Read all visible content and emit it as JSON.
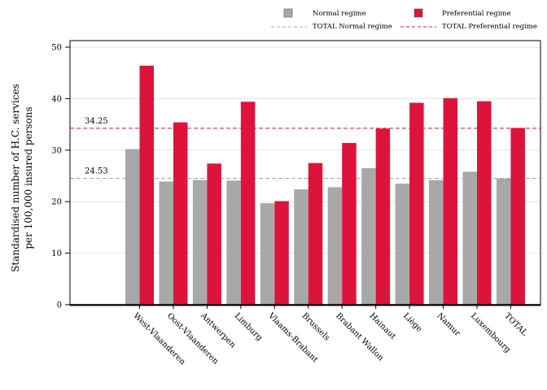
{
  "chart_data": {
    "type": "bar",
    "ylabel": [
      "Standardised number of H.C. services",
      "per 100,000 insured persons"
    ],
    "ylim": [
      0,
      50
    ],
    "yticks": [
      0,
      10,
      20,
      30,
      40,
      50
    ],
    "grid": true,
    "legend_position": "top",
    "categories": [
      "West-Vlaanderen",
      "Oost-Vlaanderen",
      "Antwerpen",
      "Limburg",
      "Vlaams-Brabant",
      "Brussels",
      "Brabant Wallon",
      "Hainaut",
      "Liège",
      "Namur",
      "Luxembourg",
      "TOTAL"
    ],
    "series": [
      {
        "name": "Normal regime",
        "color": "#a8a8a8",
        "values": [
          30.2,
          23.9,
          24.2,
          24.1,
          19.7,
          22.4,
          22.8,
          26.5,
          23.5,
          24.2,
          25.8,
          24.5
        ]
      },
      {
        "name": "Preferential regime",
        "color": "#dc143c",
        "values": [
          46.4,
          35.4,
          27.4,
          39.4,
          20.1,
          27.5,
          31.4,
          34.2,
          39.2,
          40.1,
          39.5,
          34.3
        ]
      }
    ],
    "reference_lines": [
      {
        "name": "TOTAL Normal regime",
        "value": 24.53,
        "label": "24.53",
        "color": "#a8a8a8"
      },
      {
        "name": "TOTAL Preferential regime",
        "value": 34.25,
        "label": "34.25",
        "color": "#dc143c"
      }
    ]
  }
}
